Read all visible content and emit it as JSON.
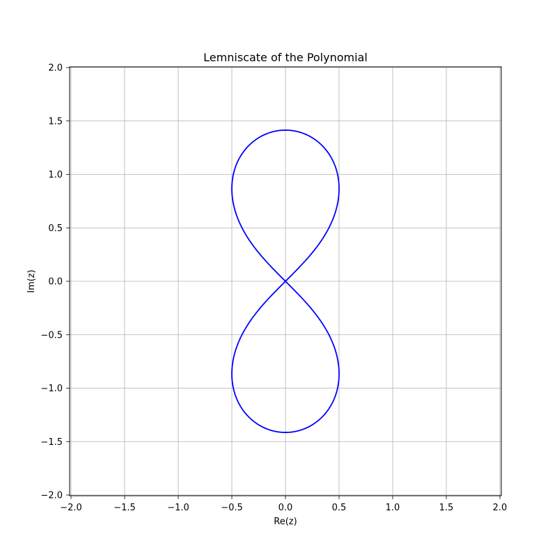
{
  "chart_data": {
    "type": "line",
    "title": "Lemniscate of the Polynomial",
    "xlabel": "Re(z)",
    "ylabel": "Im(z)",
    "xlim": [
      -2.0,
      2.0
    ],
    "ylim": [
      -2.0,
      2.0
    ],
    "x_ticks": [
      -2.0,
      -1.5,
      -1.0,
      -0.5,
      0.0,
      0.5,
      1.0,
      1.5,
      2.0
    ],
    "y_ticks": [
      -2.0,
      -1.5,
      -1.0,
      -0.5,
      0.0,
      0.5,
      1.0,
      1.5,
      2.0
    ],
    "x_tick_labels": [
      "−2.0",
      "−1.5",
      "−1.0",
      "−0.5",
      "0.0",
      "0.5",
      "1.0",
      "1.5",
      "2.0"
    ],
    "y_tick_labels": [
      "−2.0",
      "−1.5",
      "−1.0",
      "−0.5",
      "0.0",
      "0.5",
      "1.0",
      "1.5",
      "2.0"
    ],
    "grid": true,
    "series": [
      {
        "color": "#0000ff",
        "curve": "lemniscate of Bernoulli, vertical, a = sqrt(2)",
        "x": [
          0.0,
          0.18,
          0.34,
          0.45,
          0.5,
          0.45,
          0.3,
          0.15,
          0.0,
          -0.15,
          -0.3,
          -0.45,
          -0.5,
          -0.45,
          -0.34,
          -0.18,
          0.0,
          0.18,
          0.34,
          0.45,
          0.5,
          0.45,
          0.3,
          0.15,
          0.0,
          -0.15,
          -0.3,
          -0.45,
          -0.5,
          -0.45,
          -0.34,
          -0.18,
          0.0
        ],
        "y": [
          1.414,
          1.38,
          1.26,
          1.08,
          0.87,
          0.65,
          0.42,
          0.19,
          0.0,
          -0.19,
          -0.42,
          -0.65,
          -0.87,
          -1.08,
          -1.26,
          -1.38,
          -1.414,
          -1.38,
          -1.26,
          -1.08,
          -0.87,
          -0.65,
          -0.42,
          -0.19,
          0.0,
          0.19,
          0.42,
          0.65,
          0.87,
          1.08,
          1.26,
          1.38,
          1.414
        ]
      }
    ]
  }
}
